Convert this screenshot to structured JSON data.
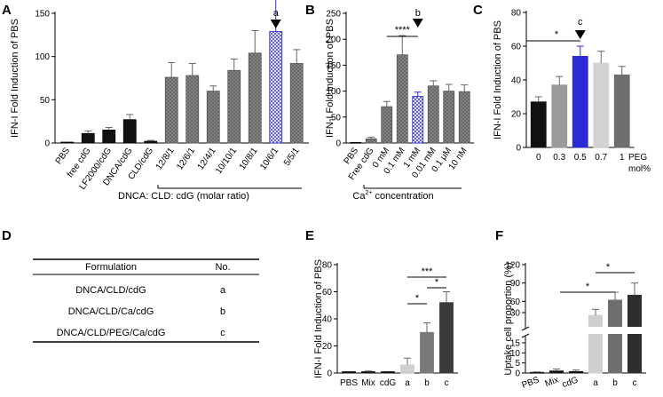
{
  "colors": {
    "blue": "#2a2ad6",
    "black": "#111111",
    "hatch_fill": "#8a8a8a",
    "light_gray": "#cfcfcf",
    "mid_gray": "#7a7a7a",
    "dark_gray": "#3a3a3a"
  },
  "chart_data": [
    {
      "panel": "A",
      "type": "bar",
      "ylabel": "IFN-I Fold Induction of PBS",
      "ylim": [
        0,
        150
      ],
      "yticks": [
        0,
        50,
        100,
        150
      ],
      "categories": [
        "PBS",
        "free cdG",
        "LF2000/cdG",
        "DNCA/cdG",
        "CLD/cdG",
        "12/8/1",
        "12/6/1",
        "12/4/1",
        "10/10/1",
        "10/8/1",
        "10/6/1",
        "5/5/1"
      ],
      "values": [
        1,
        11,
        15,
        27,
        2,
        76,
        78,
        60,
        84,
        104,
        129,
        92
      ],
      "errors": [
        0,
        3,
        3,
        6,
        1,
        17,
        14,
        6,
        13,
        26,
        38,
        16
      ],
      "styles": [
        "solid",
        "black",
        "black",
        "black",
        "black",
        "hatch",
        "hatch",
        "hatch",
        "hatch",
        "hatch",
        "hatch-blue",
        "hatch"
      ],
      "group_label": "DNCA: CLD: cdG (molar ratio)",
      "marker_label": "a"
    },
    {
      "panel": "B",
      "type": "bar",
      "ylabel": "IFN-I Fold Induction of PBS",
      "ylim": [
        0,
        250
      ],
      "yticks": [
        0,
        50,
        100,
        150,
        200,
        250
      ],
      "categories": [
        "PBS",
        "Free cdG",
        "0 mM",
        "0.1 mM",
        "1 mM",
        "0.01 mM",
        "0.1 μM",
        "10 nM"
      ],
      "values": [
        1,
        8,
        70,
        170,
        90,
        110,
        100,
        99
      ],
      "errors": [
        0,
        3,
        10,
        37,
        8,
        10,
        13,
        13
      ],
      "styles": [
        "black",
        "hatch",
        "hatch",
        "hatch",
        "hatch-blue",
        "hatch",
        "hatch",
        "hatch"
      ],
      "group_label_prefix": "Ca",
      "group_label_sup": "2+",
      "group_label_suffix": " concentration",
      "marker_label": "b",
      "significance": "****"
    },
    {
      "panel": "C",
      "type": "bar",
      "ylabel": "IFN-I Fold Induction of PBS",
      "ylim": [
        0,
        80
      ],
      "yticks": [
        0,
        20,
        40,
        60,
        80
      ],
      "categories": [
        "0",
        "0.3",
        "0.5",
        "0.7",
        "1"
      ],
      "values": [
        27,
        37,
        54,
        50,
        43
      ],
      "errors": [
        3,
        5,
        6,
        7,
        5
      ],
      "colors": [
        "#111111",
        "#9a9a9a",
        "#2a2ad6",
        "#d2d2d2",
        "#6e6e6e"
      ],
      "xlabel_line1": "PEG",
      "xlabel_line2": "mol%",
      "marker_label": "c",
      "significance": "*"
    },
    {
      "panel": "E",
      "type": "bar",
      "ylabel": "IFN-I Fold Induction of PBS",
      "ylim": [
        0,
        80
      ],
      "yticks": [
        0,
        20,
        40,
        60,
        80
      ],
      "categories": [
        "PBS",
        "Mix",
        "cdG",
        "a",
        "b",
        "c"
      ],
      "values": [
        1,
        1,
        1,
        6,
        30,
        52
      ],
      "errors": [
        0,
        0.5,
        0,
        5,
        7,
        8
      ],
      "colors": [
        "#111111",
        "#111111",
        "#111111",
        "#cfcfcf",
        "#7a7a7a",
        "#3a3a3a"
      ],
      "significance": [
        "*",
        "***",
        "*"
      ]
    },
    {
      "panel": "F",
      "type": "bar",
      "ylabel": "Uptake cell proportion (%)",
      "ylim": [
        0,
        120
      ],
      "ylim_note": "broken axis: 0-30 lower segment, 30-120 upper segment",
      "yticks": [
        0,
        5,
        10,
        15,
        30,
        60,
        90,
        120
      ],
      "categories": [
        "PBS",
        "Mix",
        "cdG",
        "a",
        "b",
        "c"
      ],
      "values": [
        0.3,
        1,
        0.7,
        37,
        62,
        70
      ],
      "errors": [
        0.3,
        1,
        0.8,
        10,
        13,
        20
      ],
      "colors": [
        "#111111",
        "#111111",
        "#111111",
        "#cfcfcf",
        "#6e6e6e",
        "#2e2e2e"
      ],
      "significance": [
        "*",
        "*"
      ]
    }
  ],
  "panels": {
    "A": "A",
    "B": "B",
    "C": "C",
    "D": "D",
    "E": "E",
    "F": "F"
  },
  "table": {
    "headers": [
      "Formulation",
      "No."
    ],
    "rows": [
      [
        "DNCA/CLD/cdG",
        "a"
      ],
      [
        "DNCA/CLD/Ca/cdG",
        "b"
      ],
      [
        "DNCA/CLD/PEG/Ca/cdG",
        "c"
      ]
    ]
  }
}
